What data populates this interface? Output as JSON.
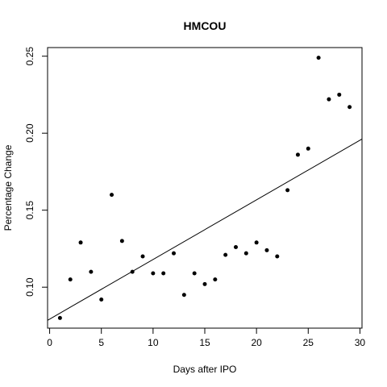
{
  "chart_data": {
    "type": "scatter",
    "title": "HMCOU",
    "xlabel": "Days after IPO",
    "ylabel": "Percentage Change",
    "xlim": [
      -0.2,
      30.2
    ],
    "ylim": [
      0.0734,
      0.2556
    ],
    "x_ticks": [
      0,
      5,
      10,
      15,
      20,
      25,
      30
    ],
    "y_ticks": [
      0.1,
      0.15,
      0.2,
      0.25
    ],
    "grid": false,
    "legend": "none",
    "points": {
      "x": [
        1,
        2,
        3,
        4,
        5,
        6,
        7,
        8,
        9,
        10,
        11,
        12,
        13,
        14,
        15,
        16,
        17,
        18,
        19,
        20,
        21,
        22,
        23,
        24,
        25,
        26,
        27,
        28,
        29
      ],
      "y": [
        0.08,
        0.105,
        0.129,
        0.11,
        0.092,
        0.16,
        0.13,
        0.11,
        0.12,
        0.109,
        0.109,
        0.122,
        0.095,
        0.109,
        0.102,
        0.105,
        0.121,
        0.126,
        0.122,
        0.129,
        0.124,
        0.12,
        0.163,
        0.186,
        0.19,
        0.249,
        0.222,
        0.225,
        0.217
      ]
    },
    "trend_line": {
      "type": "linear fit",
      "x": [
        -0.2,
        30.2
      ],
      "y": [
        0.0785,
        0.1962
      ]
    },
    "colors": {
      "points": "#000000",
      "line": "#000000",
      "axes": "#000000"
    }
  }
}
